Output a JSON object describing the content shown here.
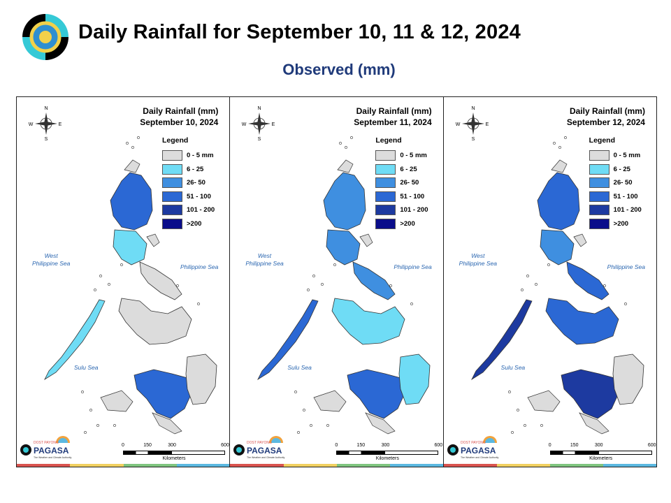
{
  "header": {
    "title": "Daily Rainfall for September 10, 11 & 12, 2024",
    "subtitle": "Observed (mm)"
  },
  "panels": [
    {
      "title_line1": "Daily Rainfall (mm)",
      "title_line2": "September 10, 2024",
      "date": "2024-09-10"
    },
    {
      "title_line1": "Daily Rainfall (mm)",
      "title_line2": "September 11, 2024",
      "date": "2024-09-11"
    },
    {
      "title_line1": "Daily Rainfall (mm)",
      "title_line2": "September 12, 2024",
      "date": "2024-09-12"
    }
  ],
  "legend": {
    "title": "Legend",
    "items": [
      {
        "label": "0 - 5 mm",
        "color": "#dcdcdc"
      },
      {
        "label": "6 - 25",
        "color": "#6fdcf5"
      },
      {
        "label": "26- 50",
        "color": "#3f8fe0"
      },
      {
        "label": "51 - 100",
        "color": "#2b68d4"
      },
      {
        "label": "101 - 200",
        "color": "#1d3aa0"
      },
      {
        "label": ">200",
        "color": "#0a0d8a"
      }
    ]
  },
  "map_labels": {
    "west_sea": "West\nPhilippine Sea",
    "philippine_sea": "Philippine Sea",
    "sulu_sea": "Sulu Sea",
    "compass": {
      "n": "N",
      "s": "S",
      "e": "E",
      "w": "W"
    }
  },
  "scale_bar": {
    "ticks": [
      "0",
      "150",
      "300",
      "600"
    ],
    "unit": "Kilometers"
  },
  "branding": {
    "pagasa_text": "PAGASA",
    "dost_text": "DOST",
    "payong_text": "PAYONG",
    "tagline": "The Weather and Climate Authority",
    "stripe_colors": [
      "#d9534f",
      "#f0d060",
      "#7fc47f",
      "#5bb8e0"
    ]
  },
  "rainfall": {
    "2024-09-10": {
      "north_luzon": "51 - 100",
      "central_luzon": "6 - 25",
      "bicol": "0 - 5 mm",
      "palawan": "6 - 25",
      "visayas": "0 - 5 mm",
      "mindanao_central": "51 - 100",
      "mindanao_east": "0 - 5 mm"
    },
    "2024-09-11": {
      "north_luzon": "26- 50",
      "central_luzon": "26- 50",
      "bicol": "26- 50",
      "palawan": "51 - 100",
      "visayas": "6 - 25",
      "mindanao_central": "51 - 100",
      "mindanao_east": "6 - 25"
    },
    "2024-09-12": {
      "north_luzon": "51 - 100",
      "central_luzon": "26- 50",
      "bicol": "51 - 100",
      "palawan": "101 - 200",
      "visayas": "51 - 100",
      "mindanao_central": "101 - 200",
      "mindanao_east": "0 - 5 mm"
    }
  }
}
